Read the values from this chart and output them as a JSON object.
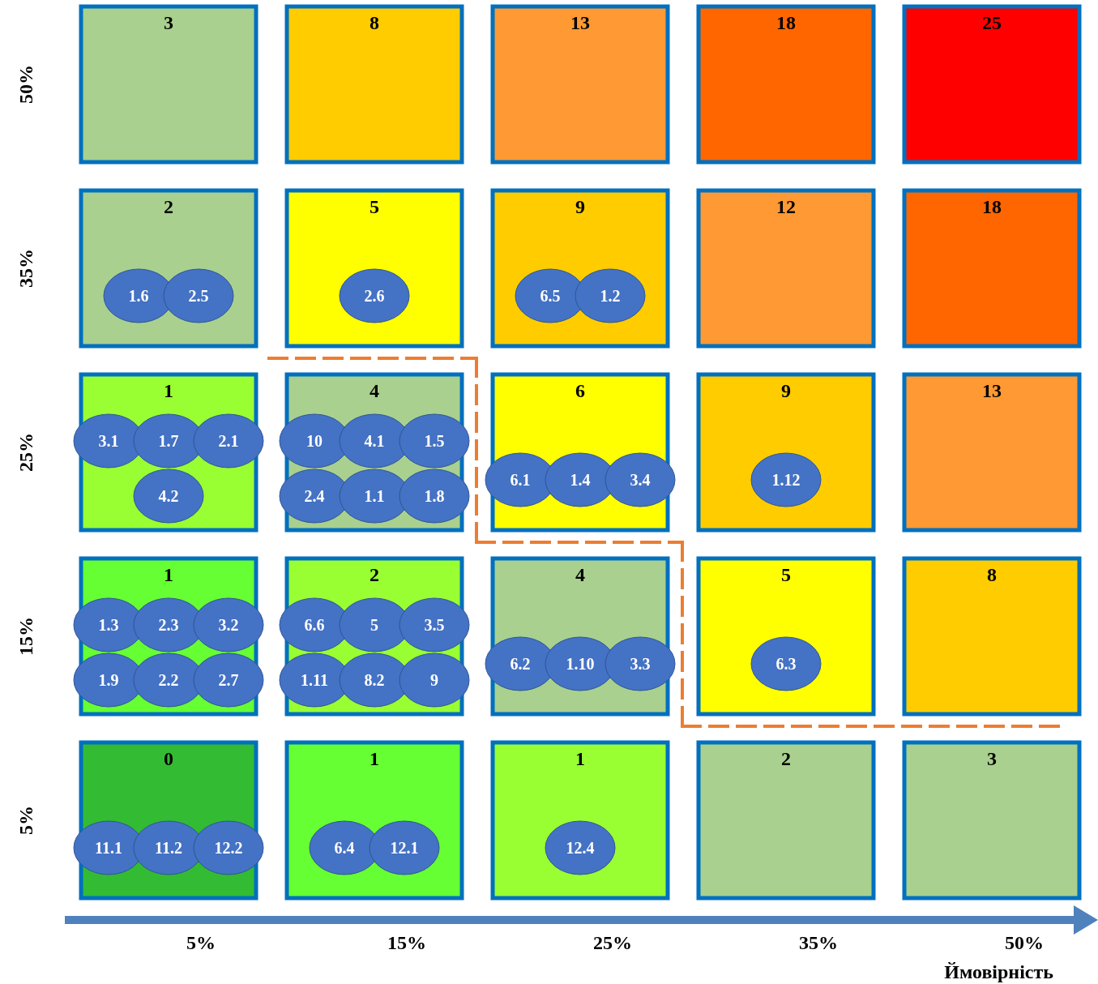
{
  "chart_data": {
    "type": "heatmap",
    "xlabel": "Ймовірність",
    "data_labels": true,
    "categories": [
      "5%",
      "15%",
      "25%",
      "35%",
      "50%"
    ],
    "y_categories": [
      "50%",
      "35%",
      "25%",
      "15%",
      "5%"
    ],
    "cells": [
      [
        3,
        8,
        13,
        18,
        25
      ],
      [
        2,
        5,
        9,
        12,
        18
      ],
      [
        1,
        4,
        6,
        9,
        13
      ],
      [
        1,
        2,
        4,
        5,
        8
      ],
      [
        0,
        1,
        1,
        2,
        3
      ]
    ],
    "colors": [
      [
        "#a9d08e",
        "#ffcc00",
        "#ff9933",
        "#ff6600",
        "#ff0000"
      ],
      [
        "#a9d08e",
        "#ffff00",
        "#ffcc00",
        "#ff9933",
        "#ff6600"
      ],
      [
        "#99ff33",
        "#a9d08e",
        "#ffff00",
        "#ffcc00",
        "#ff9933"
      ],
      [
        "#66ff33",
        "#99ff33",
        "#a9d08e",
        "#ffff00",
        "#ffcc00"
      ],
      [
        "#33bb33",
        "#66ff33",
        "#99ff33",
        "#a9d08e",
        "#a9d08e"
      ]
    ],
    "annotations": [
      "1.6",
      "2.5",
      "2.6",
      "6.5",
      "1.2",
      "3.1",
      "1.7",
      "2.1",
      "4.2",
      "10",
      "4.1",
      "1.5",
      "2.4",
      "1.1",
      "1.8",
      "6.1",
      "1.4",
      "3.4",
      "1.12",
      "1.3",
      "2.3",
      "3.2",
      "1.9",
      "2.2",
      "2.7",
      "6.6",
      "5",
      "3.5",
      "1.11",
      "8.2",
      "9",
      "6.2",
      "1.10",
      "3.3",
      "6.3",
      "11.1",
      "11.2",
      "12.2",
      "6.4",
      "12.1",
      "12.4"
    ]
  }
}
